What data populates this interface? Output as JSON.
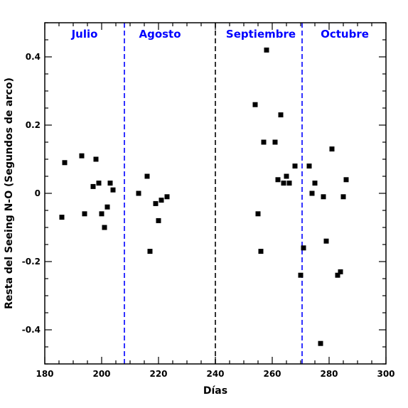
{
  "chart_data": {
    "type": "scatter",
    "xlabel": "Días",
    "ylabel": "Resta del Seeing N-O (Segundos de arco)",
    "xlim": [
      180,
      300
    ],
    "ylim": [
      -0.5,
      0.5
    ],
    "x_ticks": [
      180,
      200,
      220,
      240,
      260,
      280,
      300
    ],
    "y_ticks": [
      -0.4,
      -0.2,
      0,
      0.2,
      0.4
    ],
    "y_tick_labels": [
      "-0.4",
      "-0.2",
      "0",
      "0.2",
      "0.4"
    ],
    "x_minor_step": 5,
    "y_minor_step": 0.05,
    "grid": false,
    "marker": "square",
    "marker_color": "#000000",
    "vlines": [
      {
        "x": 208,
        "color": "#0000ff",
        "style": "dashed"
      },
      {
        "x": 240,
        "color": "#000000",
        "style": "dashed"
      },
      {
        "x": 270.5,
        "color": "#0000ff",
        "style": "dashed"
      }
    ],
    "annotations": [
      {
        "text": "Julio",
        "x": 194,
        "color": "#0000ff"
      },
      {
        "text": "Agosto",
        "x": 220.5,
        "color": "#0000ff"
      },
      {
        "text": "Septiembre",
        "x": 256,
        "color": "#0000ff"
      },
      {
        "text": "Octubre",
        "x": 285.5,
        "color": "#0000ff"
      }
    ],
    "points": [
      {
        "x": 186,
        "y": -0.07
      },
      {
        "x": 187,
        "y": 0.09
      },
      {
        "x": 193,
        "y": 0.11
      },
      {
        "x": 194,
        "y": -0.06
      },
      {
        "x": 197,
        "y": 0.02
      },
      {
        "x": 198,
        "y": 0.1
      },
      {
        "x": 199,
        "y": 0.03
      },
      {
        "x": 200,
        "y": -0.06
      },
      {
        "x": 201,
        "y": -0.1
      },
      {
        "x": 202,
        "y": -0.04
      },
      {
        "x": 203,
        "y": 0.03
      },
      {
        "x": 204,
        "y": 0.01
      },
      {
        "x": 213,
        "y": 0.0
      },
      {
        "x": 216,
        "y": 0.05
      },
      {
        "x": 217,
        "y": -0.17
      },
      {
        "x": 219,
        "y": -0.03
      },
      {
        "x": 220,
        "y": -0.08
      },
      {
        "x": 221,
        "y": -0.02
      },
      {
        "x": 223,
        "y": -0.01
      },
      {
        "x": 254,
        "y": 0.26
      },
      {
        "x": 255,
        "y": -0.06
      },
      {
        "x": 256,
        "y": -0.17
      },
      {
        "x": 257,
        "y": 0.15
      },
      {
        "x": 258,
        "y": 0.42
      },
      {
        "x": 261,
        "y": 0.15
      },
      {
        "x": 262,
        "y": 0.04
      },
      {
        "x": 263,
        "y": 0.23
      },
      {
        "x": 264,
        "y": 0.03
      },
      {
        "x": 265,
        "y": 0.05
      },
      {
        "x": 266,
        "y": 0.03
      },
      {
        "x": 268,
        "y": 0.08
      },
      {
        "x": 270,
        "y": -0.24
      },
      {
        "x": 271,
        "y": -0.16
      },
      {
        "x": 273,
        "y": 0.08
      },
      {
        "x": 274,
        "y": 0.0
      },
      {
        "x": 275,
        "y": 0.03
      },
      {
        "x": 277,
        "y": -0.44
      },
      {
        "x": 278,
        "y": -0.01
      },
      {
        "x": 279,
        "y": -0.14
      },
      {
        "x": 281,
        "y": 0.13
      },
      {
        "x": 283,
        "y": -0.24
      },
      {
        "x": 284,
        "y": -0.23
      },
      {
        "x": 285,
        "y": -0.01
      },
      {
        "x": 286,
        "y": 0.04
      }
    ]
  }
}
